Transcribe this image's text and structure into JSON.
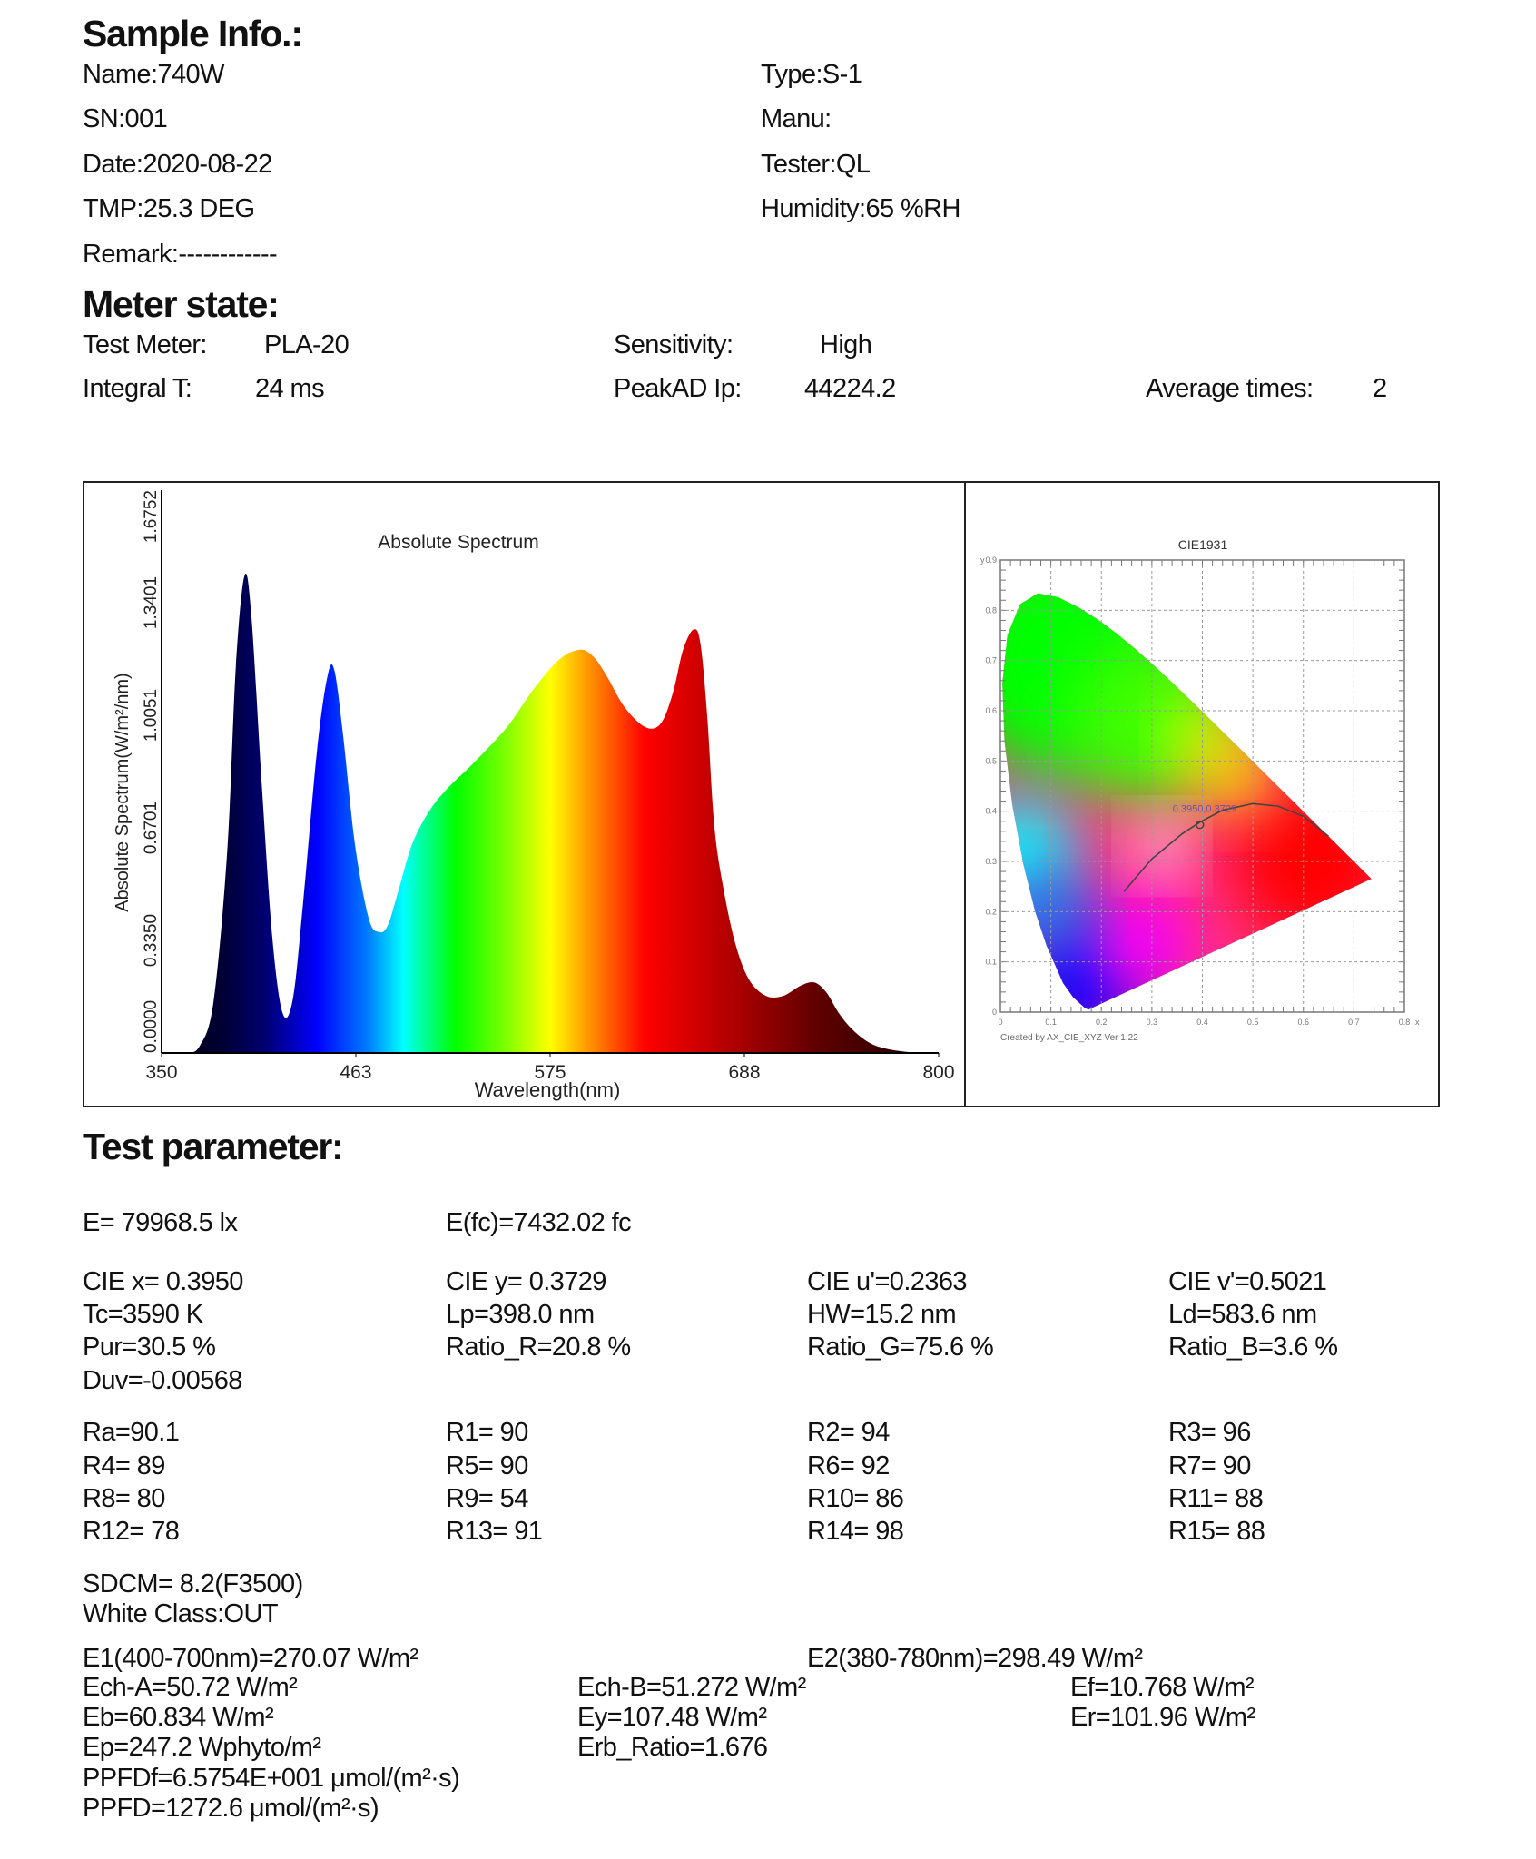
{
  "sample_info": {
    "heading": "Sample Info.:",
    "left": [
      "Name:740W",
      "SN:001",
      "Date:2020-08-22",
      "TMP:25.3 DEG",
      "Remark:------------"
    ],
    "right": [
      "Type:S-1",
      "Manu:",
      "Tester:QL",
      "Humidity:65 %RH"
    ]
  },
  "meter_state": {
    "heading": "Meter state:",
    "test_meter_label": "Test Meter:",
    "test_meter_value": "PLA-20",
    "sensitivity_label": "Sensitivity:",
    "sensitivity_value": "High",
    "integral_label": "Integral T:",
    "integral_value": "24 ms",
    "peakad_label": "PeakAD Ip:",
    "peakad_value": "44224.2",
    "average_label": "Average times:",
    "average_value": "2"
  },
  "chart_data": [
    {
      "type": "area",
      "title": "Absolute Spectrum",
      "xlabel": "Wavelength(nm)",
      "ylabel": "Absolute Spectrum(W/m²/nm)",
      "xlim": [
        350,
        800
      ],
      "ylim": [
        0,
        1.6752
      ],
      "xticks": [
        "350",
        "463",
        "575",
        "688",
        "800"
      ],
      "yticks": [
        "0.0000",
        "0.3350",
        "0.6701",
        "1.0051",
        "1.3401",
        "1.6752"
      ],
      "fill": "spectral-color-gradient",
      "x": [
        350,
        365,
        372,
        380,
        388,
        393,
        398,
        402,
        408,
        414,
        420,
        426,
        432,
        440,
        446,
        450,
        455,
        462,
        470,
        476,
        481,
        487,
        495,
        505,
        516,
        530,
        550,
        565,
        580,
        592,
        600,
        608,
        618,
        630,
        639,
        646,
        652,
        658,
        662,
        666,
        670,
        675,
        682,
        690,
        700,
        710,
        720,
        728,
        735,
        742,
        750,
        760,
        770,
        780,
        790
      ],
      "y": [
        0,
        0,
        0.02,
        0.15,
        0.6,
        1.15,
        1.42,
        1.3,
        0.8,
        0.35,
        0.12,
        0.16,
        0.45,
        0.9,
        1.12,
        1.14,
        0.95,
        0.62,
        0.4,
        0.36,
        0.38,
        0.48,
        0.62,
        0.72,
        0.79,
        0.86,
        0.97,
        1.08,
        1.17,
        1.2,
        1.18,
        1.12,
        1.03,
        0.97,
        0.98,
        1.07,
        1.2,
        1.26,
        1.22,
        1.0,
        0.68,
        0.5,
        0.33,
        0.22,
        0.17,
        0.17,
        0.2,
        0.21,
        0.18,
        0.12,
        0.07,
        0.03,
        0.012,
        0.004,
        0
      ]
    },
    {
      "type": "scatter",
      "title": "CIE1931",
      "xlabel": "x",
      "ylabel": "y",
      "xlim": [
        0,
        0.8
      ],
      "ylim": [
        0,
        0.9
      ],
      "xticks": [
        "0",
        "0.1",
        "0.2",
        "0.3",
        "0.4",
        "0.5",
        "0.6",
        "0.7",
        "0.8"
      ],
      "yticks": [
        "0",
        "0.1",
        "0.2",
        "0.3",
        "0.4",
        "0.5",
        "0.6",
        "0.7",
        "0.8",
        "0.9"
      ],
      "grid": true,
      "point": {
        "x": 0.395,
        "y": 0.3729,
        "label": "0.3950,0.3729"
      },
      "footer": "Created by AX_CIE_XYZ Ver 1.22"
    }
  ],
  "test_parameter": {
    "heading": "Test parameter:",
    "row_e": [
      "E=  79968.5 lx",
      "E(fc)=7432.02 fc"
    ],
    "block1": [
      [
        "CIE x= 0.3950",
        "CIE y= 0.3729",
        "CIE u'=0.2363",
        "CIE v'=0.5021"
      ],
      [
        "Tc=3590 K",
        "Lp=398.0 nm",
        "HW=15.2 nm",
        "Ld=583.6 nm"
      ],
      [
        "Pur=30.5 %",
        "Ratio_R=20.8 %",
        "Ratio_G=75.6 %",
        "Ratio_B=3.6 %"
      ],
      [
        "Duv=-0.00568"
      ]
    ],
    "block2": [
      [
        "Ra=90.1",
        "R1= 90",
        "R2= 94",
        "R3= 96"
      ],
      [
        "R4= 89",
        "R5= 90",
        "R6= 92",
        "R7= 90"
      ],
      [
        "R8= 80",
        "R9= 54",
        "R10= 86",
        "R11= 88"
      ],
      [
        "R12= 78",
        "R13= 91",
        "R14= 98",
        "R15= 88"
      ]
    ],
    "sdcm": "SDCM= 8.2(F3500)",
    "white_class": "White Class:OUT",
    "e1": "E1(400-700nm)=270.07 W/m²",
    "e2": "E2(380-780nm)=298.49 W/m²",
    "block3": [
      [
        "Ech-A=50.72 W/m²",
        "Ech-B=51.272 W/m²",
        "Ef=10.768 W/m²"
      ],
      [
        "Eb=60.834 W/m²",
        "Ey=107.48 W/m²",
        "Er=101.96 W/m²"
      ],
      [
        "Ep=247.2 Wphyto/m²",
        "Erb_Ratio=1.676"
      ],
      [
        "PPFDf=6.5754E+001 μmol/(m²·s)"
      ],
      [
        "PPFD=1272.6 μmol/(m²·s)"
      ]
    ]
  }
}
